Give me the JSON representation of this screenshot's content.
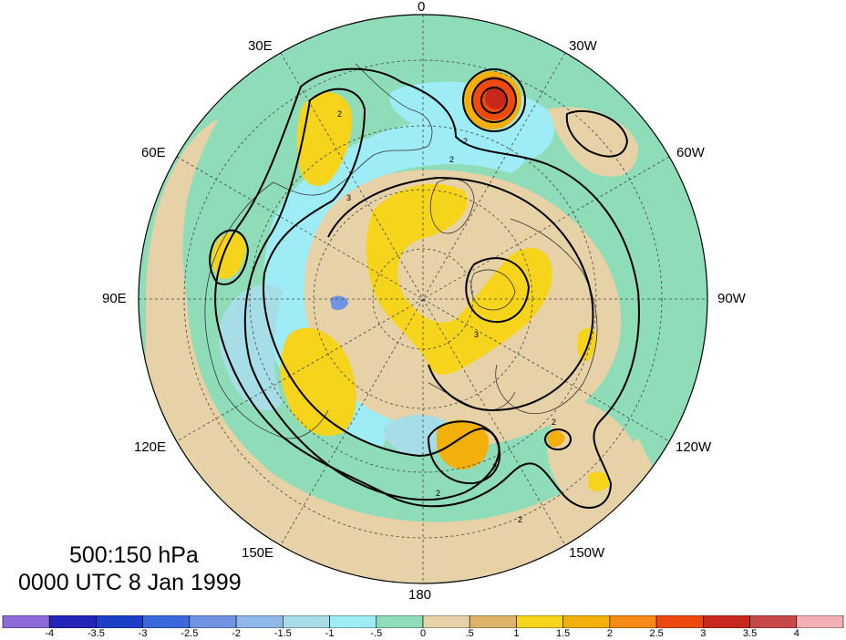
{
  "labels": {
    "lon": {
      "top": "0",
      "l30e": "30E",
      "r30w": "30W",
      "l60e": "60E",
      "r60w": "60W",
      "l90e": "90E",
      "r90w": "90W",
      "l120e": "120E",
      "r120w": "120W",
      "l150e": "150E",
      "r150w": "150W",
      "bottom": "180"
    },
    "level": "500:150 hPa",
    "time": "0000 UTC 8 Jan 1999"
  },
  "contour_labels": [
    "2",
    "3",
    "2",
    "2",
    "2",
    "3",
    "2",
    "2",
    "3"
  ],
  "colorbar": {
    "ticks": [
      "-4",
      "-3.5",
      "-3",
      "-2.5",
      "-2",
      "-1.5",
      "-1",
      "-.5",
      "0",
      ".5",
      "1",
      "1.5",
      "2",
      "2.5",
      "3",
      "3.5",
      "4"
    ],
    "colors": [
      "#8c6bd6",
      "#2424b8",
      "#1c3fc8",
      "#3b69dc",
      "#6f94e4",
      "#8fb8ea",
      "#a6dde6",
      "#9eecf6",
      "#8fdcb8",
      "#e6d2a6",
      "#deb46a",
      "#f7d41c",
      "#f4b00a",
      "#f58a14",
      "#ee4a10",
      "#c8281c",
      "#c84848",
      "#f4b0b4"
    ],
    "fill_colors": {
      "ocean_green": "#8fdcb8",
      "tan": "#e6d2a6",
      "light_brown": "#deb46a",
      "yellow": "#f7d41c",
      "orange": "#f4b00a",
      "cyan": "#9eecf6",
      "light_blue": "#a6dde6",
      "blue": "#6f94e4",
      "red": "#ee4a10",
      "dark_red": "#c8281c"
    }
  }
}
